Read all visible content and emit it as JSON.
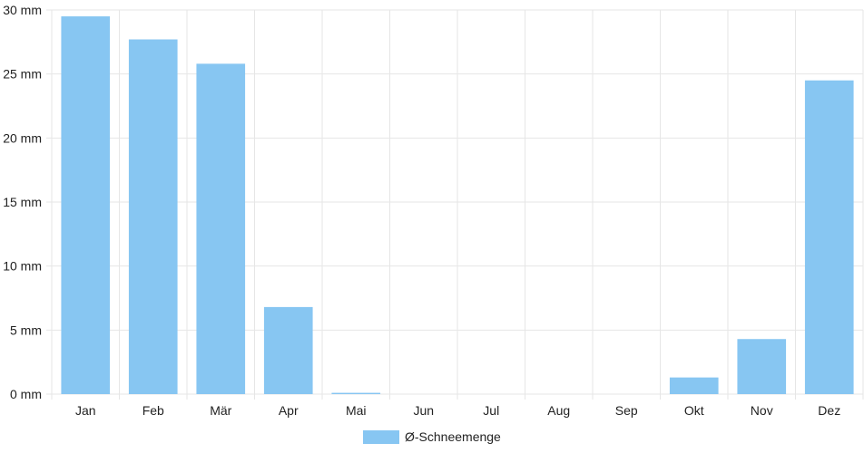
{
  "chart_data": {
    "type": "bar",
    "categories": [
      "Jan",
      "Feb",
      "Mär",
      "Apr",
      "Mai",
      "Jun",
      "Jul",
      "Aug",
      "Sep",
      "Okt",
      "Nov",
      "Dez"
    ],
    "series": [
      {
        "name": "Ø-Schneemenge",
        "values": [
          29.5,
          27.7,
          25.8,
          6.8,
          0.1,
          0,
          0,
          0,
          0,
          1.3,
          4.3,
          24.5
        ],
        "color": "#87c6f2"
      }
    ],
    "y_ticks": [
      "0 mm",
      "5 mm",
      "10 mm",
      "15 mm",
      "20 mm",
      "25 mm",
      "30 mm"
    ],
    "ylim": [
      0,
      30
    ],
    "unit": "mm",
    "grid": true,
    "legend_position": "bottom-center",
    "grid_color": "#e6e6e6"
  }
}
